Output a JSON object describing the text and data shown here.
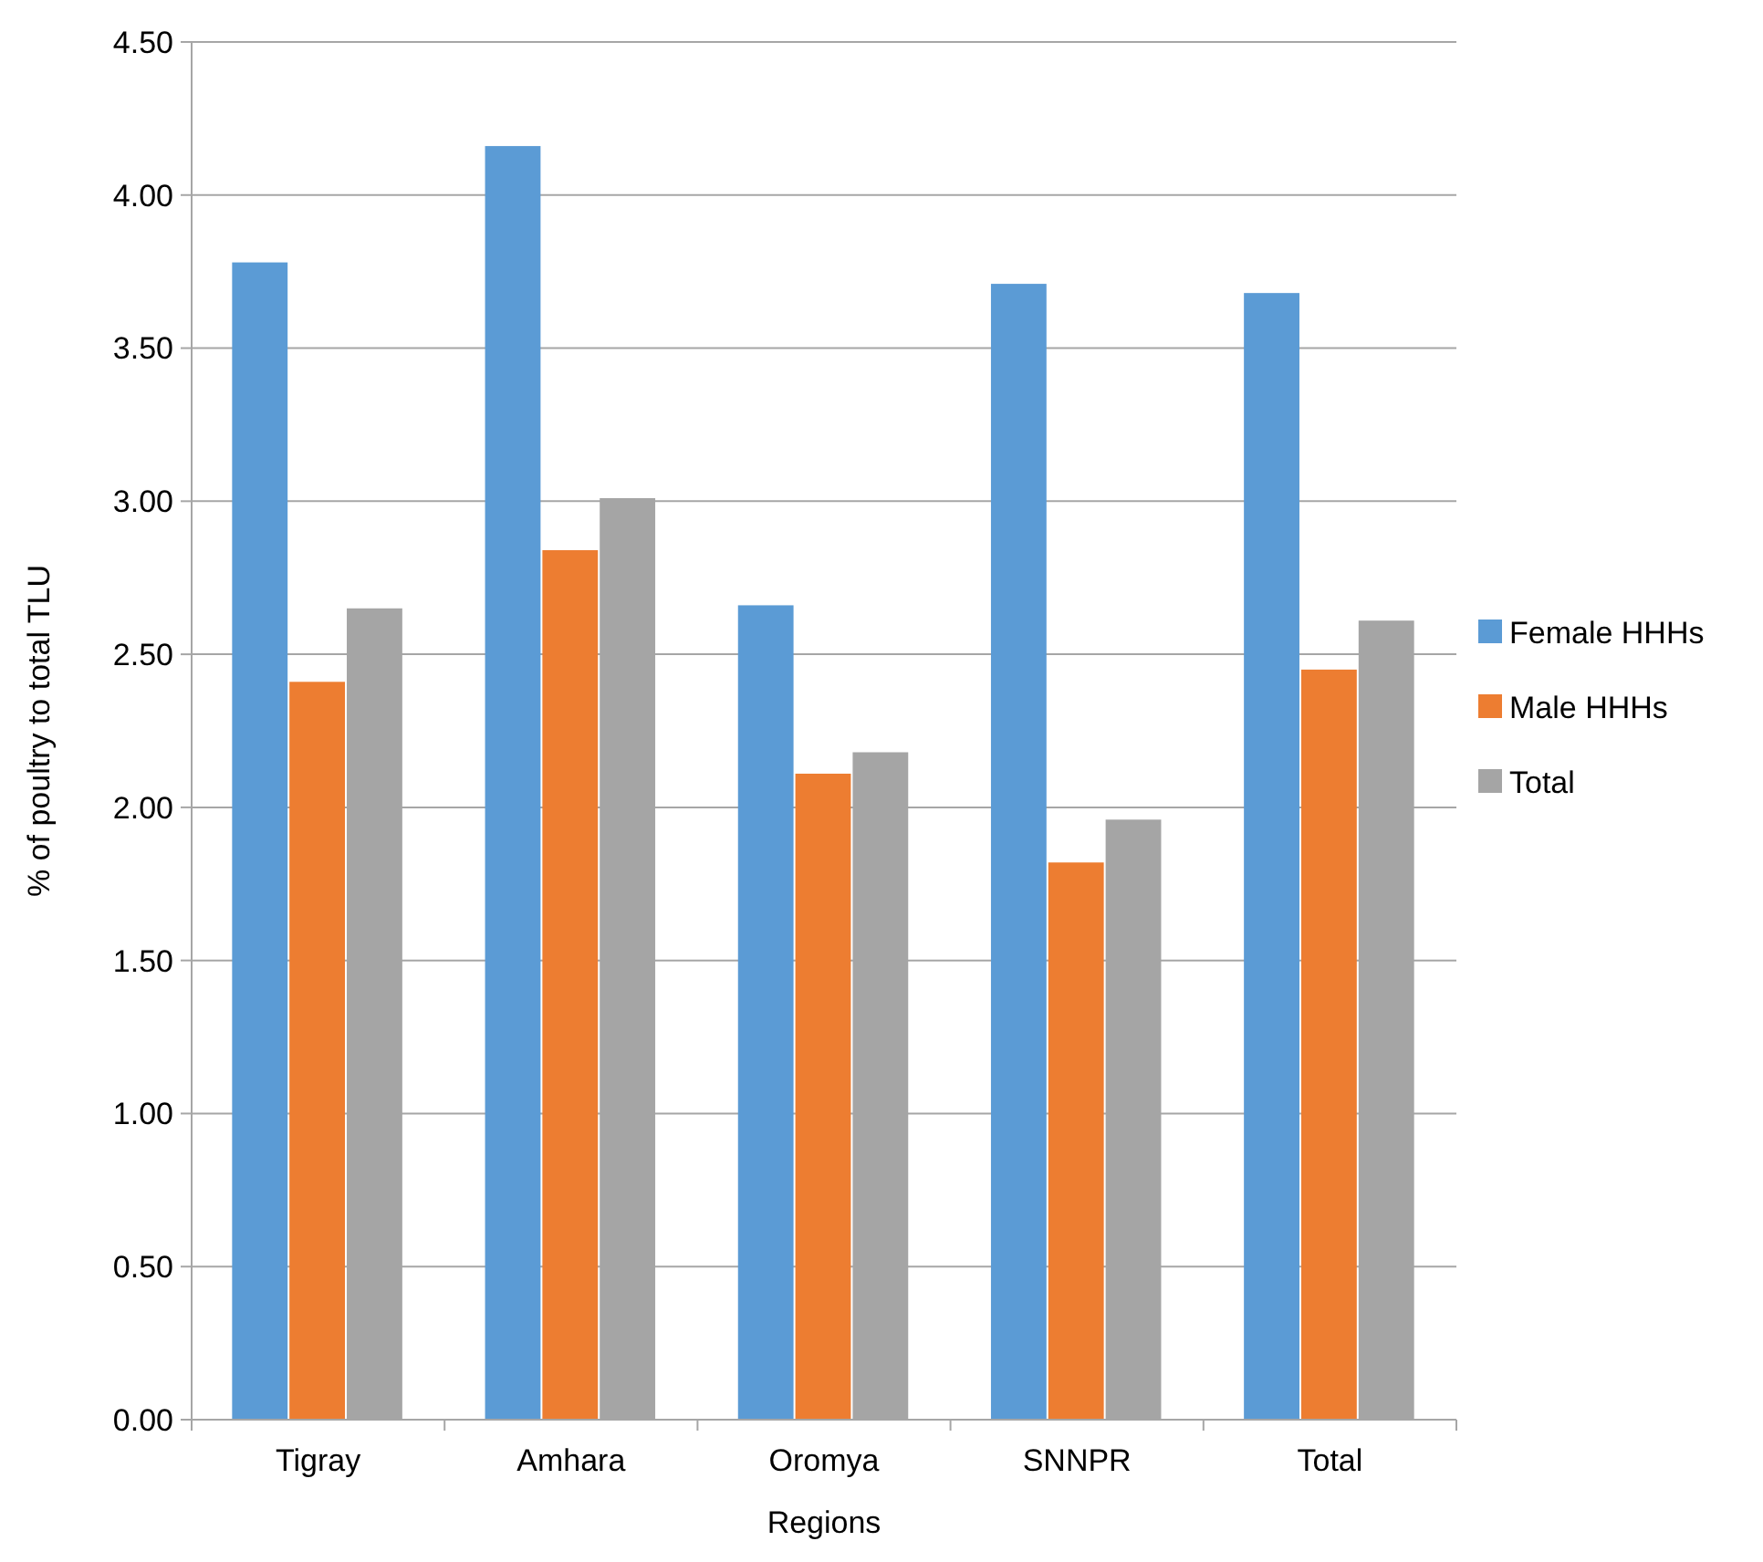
{
  "chart_data": {
    "type": "bar",
    "xlabel": "Regions",
    "ylabel": "% of poultry to total TLU",
    "categories": [
      "Tigray",
      "Amhara",
      "Oromya",
      "SNNPR",
      "Total"
    ],
    "series": [
      {
        "name": "Female HHHs",
        "color": "#5b9bd5",
        "values": [
          3.78,
          4.16,
          2.66,
          3.71,
          3.68
        ]
      },
      {
        "name": "Male HHHs",
        "color": "#ed7d31",
        "values": [
          2.41,
          2.84,
          2.11,
          1.82,
          2.45
        ]
      },
      {
        "name": "Total",
        "color": "#a5a5a5",
        "values": [
          2.65,
          3.01,
          2.18,
          1.96,
          2.61
        ]
      }
    ],
    "ylim": [
      0,
      4.5
    ],
    "yticks": [
      {
        "value": 0,
        "label": "0.00"
      },
      {
        "value": 0.5,
        "label": "0.50"
      },
      {
        "value": 1,
        "label": "1.00"
      },
      {
        "value": 1.5,
        "label": "1.50"
      },
      {
        "value": 2,
        "label": "2.00"
      },
      {
        "value": 2.5,
        "label": "2.50"
      },
      {
        "value": 3,
        "label": "3.00"
      },
      {
        "value": 3.5,
        "label": "3.50"
      },
      {
        "value": 4,
        "label": "4.00"
      },
      {
        "value": 4.5,
        "label": "4.50"
      }
    ],
    "grid": "y",
    "legend": "right"
  }
}
